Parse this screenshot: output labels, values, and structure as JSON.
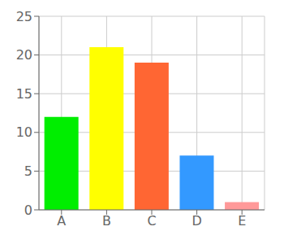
{
  "chart_data": {
    "type": "bar",
    "categories": [
      "A",
      "B",
      "C",
      "D",
      "E"
    ],
    "values": [
      12,
      21,
      19,
      7,
      1
    ],
    "colors": [
      "#00ee00",
      "#ffff00",
      "#ff6633",
      "#3399ff",
      "#ff9999"
    ],
    "ylim": [
      0,
      25
    ],
    "yticks": [
      0,
      5,
      10,
      15,
      20,
      25
    ],
    "grid": true
  }
}
